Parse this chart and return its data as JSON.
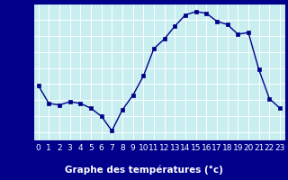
{
  "hours": [
    0,
    1,
    2,
    3,
    4,
    5,
    6,
    7,
    8,
    9,
    10,
    11,
    12,
    13,
    14,
    15,
    16,
    17,
    18,
    19,
    20,
    21,
    22,
    23
  ],
  "temperatures": [
    16.9,
    15.8,
    15.7,
    15.9,
    15.8,
    15.5,
    15.0,
    14.1,
    15.4,
    16.3,
    17.5,
    19.2,
    19.8,
    20.6,
    21.3,
    21.5,
    21.4,
    20.9,
    20.7,
    20.1,
    20.2,
    17.9,
    16.1,
    15.5
  ],
  "line_color": "#00008b",
  "marker": "s",
  "markersize": 2.5,
  "linewidth": 1.0,
  "bg_color": "#c8eef0",
  "grid_color": "#ffffff",
  "axis_label_bg": "#00008b",
  "axis_label_color": "#ffffff",
  "tick_color": "#00008b",
  "xlabel": "Graphe des températures (°c)",
  "xlabel_fontsize": 7.5,
  "tick_fontsize": 6.5,
  "ylim": [
    13.5,
    22.0
  ],
  "yticks": [
    14,
    15,
    16,
    17,
    18,
    19,
    20,
    21
  ],
  "xlim": [
    -0.5,
    23.5
  ],
  "xticks": [
    0,
    1,
    2,
    3,
    4,
    5,
    6,
    7,
    8,
    9,
    10,
    11,
    12,
    13,
    14,
    15,
    16,
    17,
    18,
    19,
    20,
    21,
    22,
    23
  ]
}
